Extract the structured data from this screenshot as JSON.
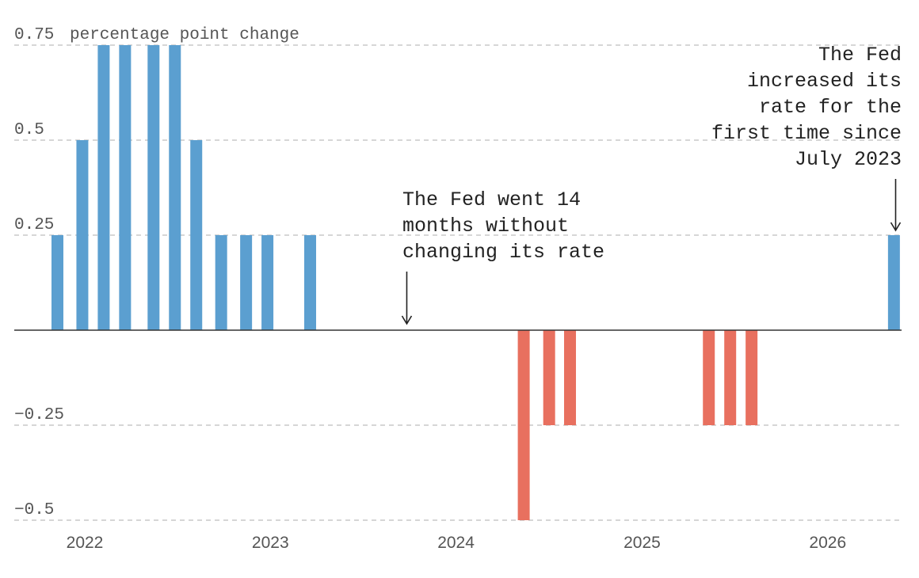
{
  "chart_data": {
    "type": "bar",
    "title": "",
    "xlabel": "",
    "ylabel": "percentage point change",
    "ylim": [
      -0.5,
      0.75
    ],
    "xlim": [
      "2022-01-01",
      "2026-10-01"
    ],
    "grid": true,
    "y_ticks": [
      {
        "value": 0.75,
        "label": "0.75"
      },
      {
        "value": 0.5,
        "label": "0.5"
      },
      {
        "value": 0.25,
        "label": "0.25"
      },
      {
        "value": -0.25,
        "label": "−0.25"
      },
      {
        "value": -0.5,
        "label": "−0.5"
      }
    ],
    "x_ticks": [
      "2022",
      "2023",
      "2024",
      "2025",
      "2026"
    ],
    "colors": {
      "increase": "#5b9fd0",
      "decrease": "#e8705f"
    },
    "bars": [
      {
        "date": "2022-03-16",
        "value": 0.25
      },
      {
        "date": "2022-05-04",
        "value": 0.5
      },
      {
        "date": "2022-06-15",
        "value": 0.75
      },
      {
        "date": "2022-07-27",
        "value": 0.75
      },
      {
        "date": "2022-09-21",
        "value": 0.75
      },
      {
        "date": "2022-11-02",
        "value": 0.75
      },
      {
        "date": "2022-12-14",
        "value": 0.5
      },
      {
        "date": "2023-02-01",
        "value": 0.25
      },
      {
        "date": "2023-03-22",
        "value": 0.25
      },
      {
        "date": "2023-05-03",
        "value": 0.25
      },
      {
        "date": "2023-07-26",
        "value": 0.25
      },
      {
        "date": "2024-09-18",
        "value": -0.5
      },
      {
        "date": "2024-11-07",
        "value": -0.25
      },
      {
        "date": "2024-12-18",
        "value": -0.25
      },
      {
        "date": "2025-09-17",
        "value": -0.25
      },
      {
        "date": "2025-10-29",
        "value": -0.25
      },
      {
        "date": "2025-12-10",
        "value": -0.25
      },
      {
        "date": "2026-09-16",
        "value": 0.25
      }
    ],
    "annotations": [
      {
        "lines": [
          "The Fed went 14",
          "months without",
          "changing its rate"
        ],
        "date": "2024-02-01",
        "value": 0
      },
      {
        "lines": [
          "The Fed",
          "increased its",
          "rate for the",
          "first time since",
          "July 2023"
        ],
        "date": "2026-09-16",
        "value": 0.25
      }
    ]
  }
}
